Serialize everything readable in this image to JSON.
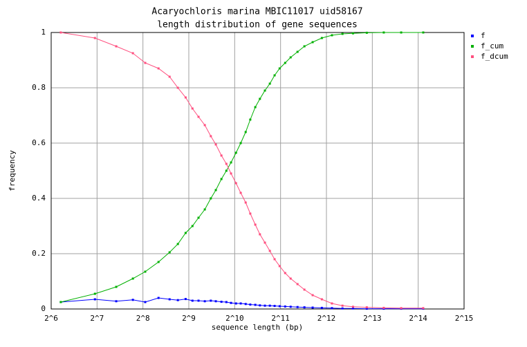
{
  "chart_data": {
    "type": "line",
    "title": "Acaryochloris marina MBIC11017 uid58167",
    "subtitle": "length distribution of gene sequences",
    "x_label": "sequence length (bp)",
    "y_label": "frequency",
    "x": [
      74,
      124,
      171,
      220,
      265,
      324,
      383,
      434,
      488,
      541,
      593,
      652,
      714,
      770,
      838,
      903,
      969,
      1045,
      1122,
      1209,
      1296,
      1398,
      1499,
      1617,
      1742,
      1872,
      2020,
      2195,
      2385,
      2646,
      2936,
      3326,
      3822,
      4451,
      5218,
      6121,
      7537,
      9740,
      12670,
      17680
    ],
    "series": [
      {
        "name": "f",
        "color": "#0000ff",
        "values": [
          0.025,
          0.035,
          0.028,
          0.033,
          0.025,
          0.04,
          0.035,
          0.032,
          0.036,
          0.03,
          0.03,
          0.028,
          0.03,
          0.028,
          0.026,
          0.025,
          0.022,
          0.02,
          0.02,
          0.018,
          0.016,
          0.015,
          0.013,
          0.012,
          0.012,
          0.011,
          0.01,
          0.009,
          0.008,
          0.007,
          0.006,
          0.005,
          0.004,
          0.003,
          0.002,
          0.002,
          0.001,
          0.001,
          0.001,
          0.001
        ]
      },
      {
        "name": "f_cum",
        "color": "#00b000",
        "values": [
          0.025,
          0.055,
          0.08,
          0.11,
          0.135,
          0.17,
          0.205,
          0.235,
          0.275,
          0.3,
          0.33,
          0.36,
          0.4,
          0.43,
          0.47,
          0.5,
          0.53,
          0.565,
          0.6,
          0.64,
          0.685,
          0.73,
          0.76,
          0.79,
          0.815,
          0.845,
          0.87,
          0.89,
          0.91,
          0.93,
          0.95,
          0.965,
          0.98,
          0.99,
          0.995,
          0.997,
          0.999,
          1,
          1,
          1
        ]
      },
      {
        "name": "f_dcum",
        "color": "#ff4f7f",
        "values": [
          1,
          0.98,
          0.95,
          0.925,
          0.89,
          0.87,
          0.84,
          0.8,
          0.765,
          0.725,
          0.695,
          0.665,
          0.625,
          0.595,
          0.555,
          0.525,
          0.49,
          0.455,
          0.42,
          0.385,
          0.345,
          0.305,
          0.27,
          0.24,
          0.21,
          0.18,
          0.155,
          0.13,
          0.11,
          0.09,
          0.07,
          0.05,
          0.035,
          0.02,
          0.012,
          0.008,
          0.006,
          0.004,
          0.003,
          0.003
        ]
      }
    ],
    "x_log_base": 2,
    "xlim": [
      64,
      32768
    ],
    "xticks": [
      {
        "value": 64,
        "label": "2^6"
      },
      {
        "value": 128,
        "label": "2^7"
      },
      {
        "value": 256,
        "label": "2^8"
      },
      {
        "value": 512,
        "label": "2^9"
      },
      {
        "value": 1024,
        "label": "2^10"
      },
      {
        "value": 2048,
        "label": "2^11"
      },
      {
        "value": 4096,
        "label": "2^12"
      },
      {
        "value": 8192,
        "label": "2^13"
      },
      {
        "value": 16384,
        "label": "2^14"
      },
      {
        "value": 32768,
        "label": "2^15"
      }
    ],
    "ylim": [
      0,
      1
    ],
    "yticks": [
      0,
      0.2,
      0.4,
      0.6,
      0.8,
      1
    ],
    "grid": true,
    "legend": "right"
  }
}
